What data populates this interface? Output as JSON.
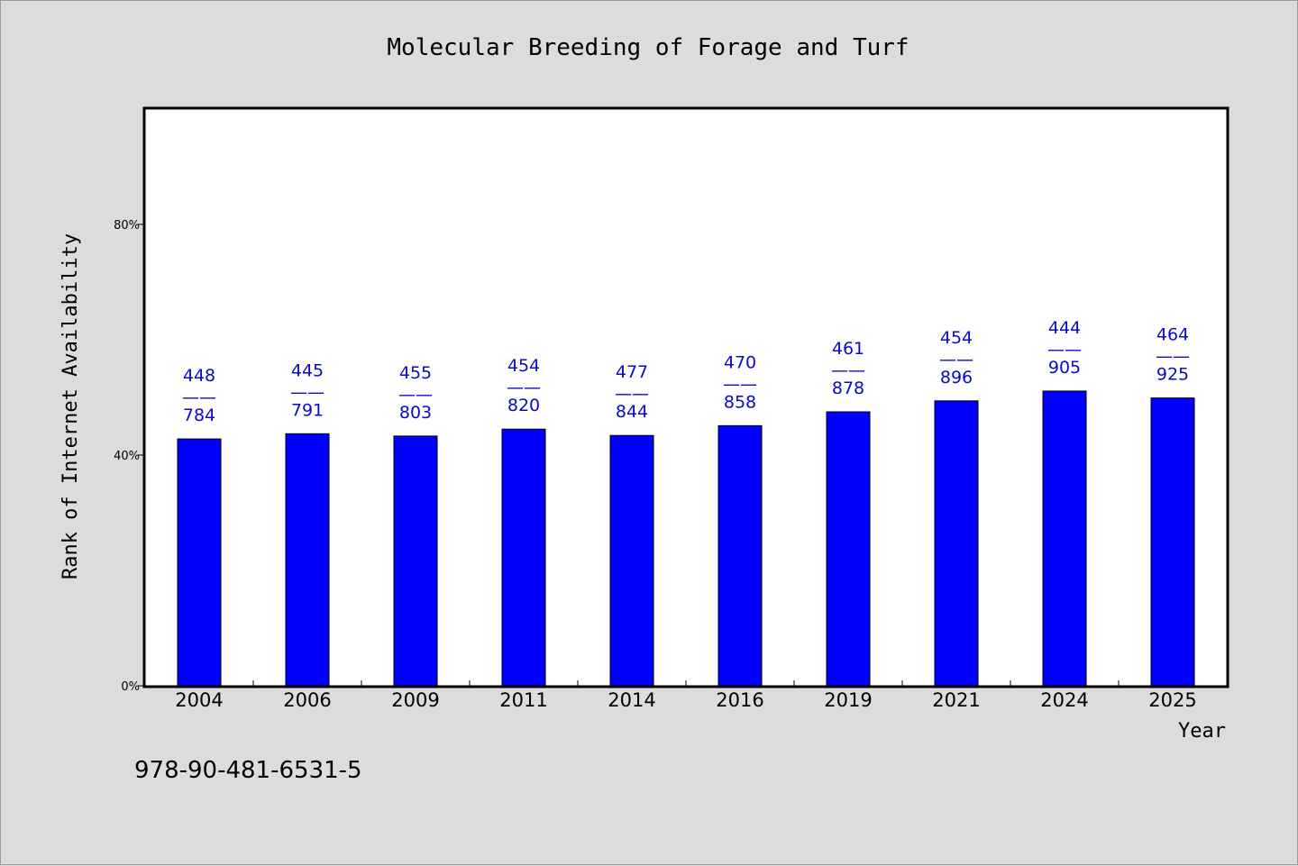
{
  "chart_data": {
    "type": "bar",
    "title": "Molecular Breeding of Forage and Turf",
    "xlabel": "Year",
    "ylabel": "Rank of Internet Availability",
    "categories": [
      "2004",
      "2006",
      "2009",
      "2011",
      "2014",
      "2016",
      "2019",
      "2021",
      "2024",
      "2025"
    ],
    "values": [
      42.8,
      43.7,
      43.3,
      44.5,
      43.4,
      45.1,
      47.5,
      49.4,
      51.1,
      49.9
    ],
    "data_labels": [
      {
        "top": "448",
        "sep": "——",
        "bottom": "784"
      },
      {
        "top": "445",
        "sep": "——",
        "bottom": "791"
      },
      {
        "top": "455",
        "sep": "——",
        "bottom": "803"
      },
      {
        "top": "454",
        "sep": "——",
        "bottom": "820"
      },
      {
        "top": "477",
        "sep": "——",
        "bottom": "844"
      },
      {
        "top": "470",
        "sep": "——",
        "bottom": "858"
      },
      {
        "top": "461",
        "sep": "——",
        "bottom": "878"
      },
      {
        "top": "454",
        "sep": "——",
        "bottom": "896"
      },
      {
        "top": "444",
        "sep": "——",
        "bottom": "905"
      },
      {
        "top": "464",
        "sep": "——",
        "bottom": "925"
      }
    ],
    "yticks": [
      {
        "value": 0,
        "label": "0%"
      },
      {
        "value": 40,
        "label": "40%"
      },
      {
        "value": 80,
        "label": "80%"
      }
    ],
    "ylim": [
      0,
      100
    ],
    "grid": false,
    "legend": "none",
    "colors": {
      "bar": "#0000ff",
      "label": "#0a0ac8",
      "plot_bg": "#ffffff",
      "page_bg": "#dcdcdc"
    }
  },
  "footer": {
    "code": "978-90-481-6531-5"
  }
}
